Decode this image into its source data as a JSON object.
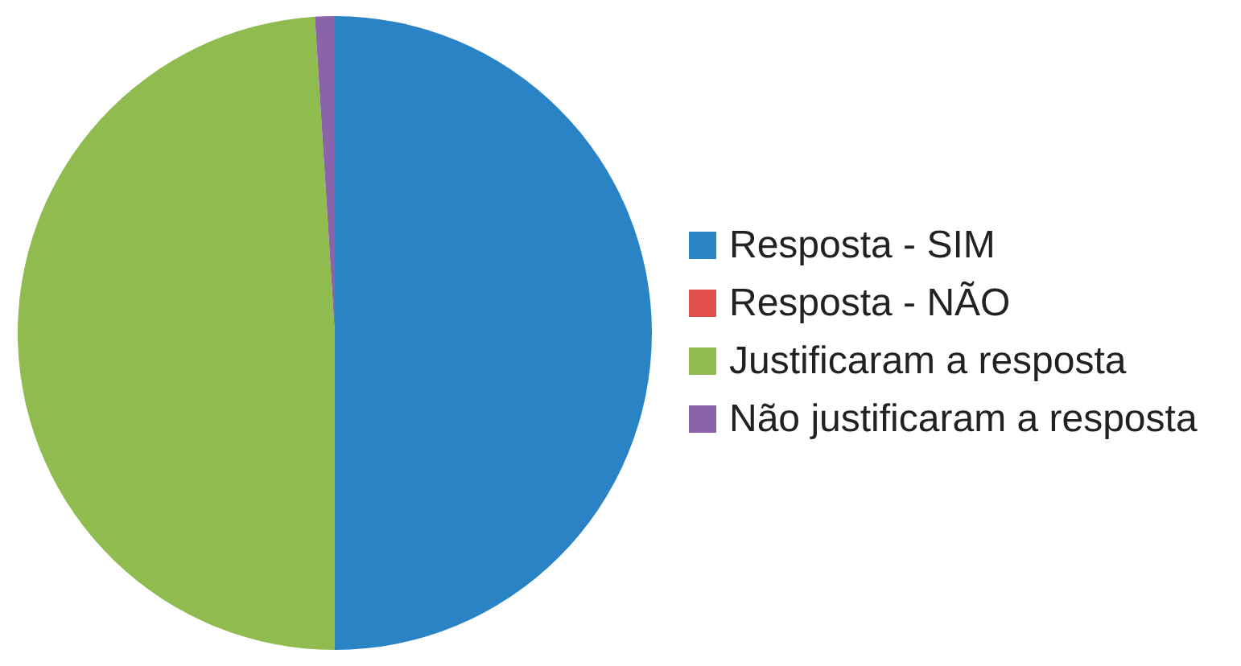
{
  "chart_data": {
    "type": "pie",
    "categories": [
      "Resposta - SIM",
      "Resposta - NÃO",
      "Justificaram a resposta",
      "Não justificaram a resposta"
    ],
    "values": [
      50,
      0,
      49,
      1
    ],
    "colors": [
      "#2a83c5",
      "#e04f4c",
      "#8fbb4f",
      "#8a63a8"
    ],
    "legend": "right"
  }
}
